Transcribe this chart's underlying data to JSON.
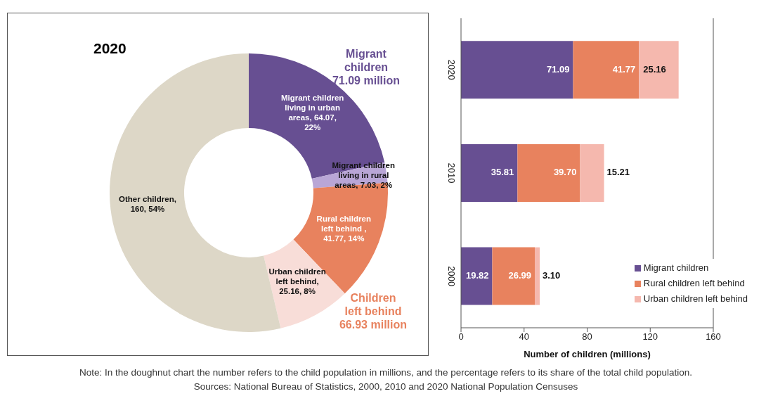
{
  "chart_data": [
    {
      "type": "donut",
      "title": "2020",
      "categories": [
        "Migrant children living in urban areas",
        "Migrant children living in rural areas",
        "Rural children left behind ",
        "Urban children left behind",
        "Other children"
      ],
      "values": [
        64.07,
        7.03,
        41.77,
        25.16,
        160
      ],
      "colors": [
        "#674f92",
        "#b9a6d6",
        "#e8825e",
        "#f8ddd8",
        "#ddd7c7"
      ],
      "value_labels": [
        ", 64.07, 22%",
        ", 7.03, 2%",
        ", 41.77, 14%",
        ", 25.16, 8%",
        ", 160, 54%"
      ],
      "annotations": [
        "Migrant children 71.09 million",
        "Children left behind 66.93 million"
      ]
    },
    {
      "type": "bar",
      "orientation": "horizontal",
      "stacked": true,
      "categories": [
        "2020",
        "2010",
        "2000"
      ],
      "series": [
        {
          "name": "Migrant children",
          "color": "#674f92",
          "values": [
            71.09,
            35.81,
            19.82
          ],
          "value_labels": [
            "71.09",
            "35.81",
            "19.82"
          ]
        },
        {
          "name": "Rural children left behind",
          "color": "#e8825e",
          "values": [
            41.77,
            39.7,
            26.99
          ],
          "value_labels": [
            "41.77",
            "39.70",
            "26.99"
          ]
        },
        {
          "name": "Urban children left behind",
          "color": "#f5b8ae",
          "values": [
            25.16,
            15.21,
            3.1
          ],
          "value_labels": [
            "25.16",
            "15.21",
            "3.10"
          ]
        }
      ],
      "xlim": [
        0,
        160
      ],
      "xticks": [
        0,
        40,
        80,
        120,
        160
      ],
      "xlabel": "Number of children (millions)",
      "legend": "bottom right",
      "grid": false,
      "annotations": [
        "Note: In the doughnut chart the number refers to the child population in millions, and the percentage refers to its share of the total child population.",
        "Sources: National Bureau of Statistics, 2000, 2010 and 2020 National Population Censuses"
      ]
    }
  ]
}
